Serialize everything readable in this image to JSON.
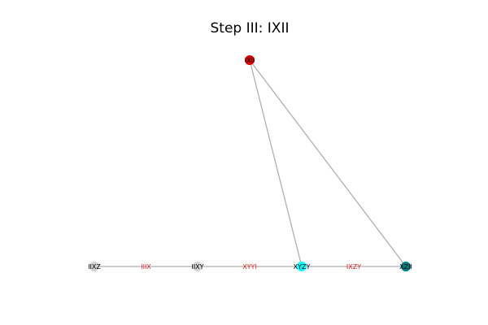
{
  "title": "Step III: IXII",
  "colors": {
    "edge": "#b0b0b0",
    "edge_label": "#d62728"
  },
  "nodes": [
    {
      "id": "IXII",
      "label": "IXII",
      "color": "#e00000"
    },
    {
      "id": "IIXZ",
      "label": "IIXZ",
      "color": "#d3d3d3"
    },
    {
      "id": "IIXY",
      "label": "IIXY",
      "color": "#d3d3d3"
    },
    {
      "id": "XYZY",
      "label": "XYZY",
      "color": "#00ffff"
    },
    {
      "id": "XZII",
      "label": "XZII",
      "color": "#008080"
    }
  ],
  "edges": [
    {
      "from": "IIXZ",
      "to": "IIXY",
      "label": "IIIX"
    },
    {
      "from": "IIXY",
      "to": "XYZY",
      "label": "XYYI"
    },
    {
      "from": "XYZY",
      "to": "XZII",
      "label": "IXZY"
    },
    {
      "from": "IXII",
      "to": "XYZY",
      "label": ""
    },
    {
      "from": "IXII",
      "to": "XZII",
      "label": ""
    }
  ]
}
